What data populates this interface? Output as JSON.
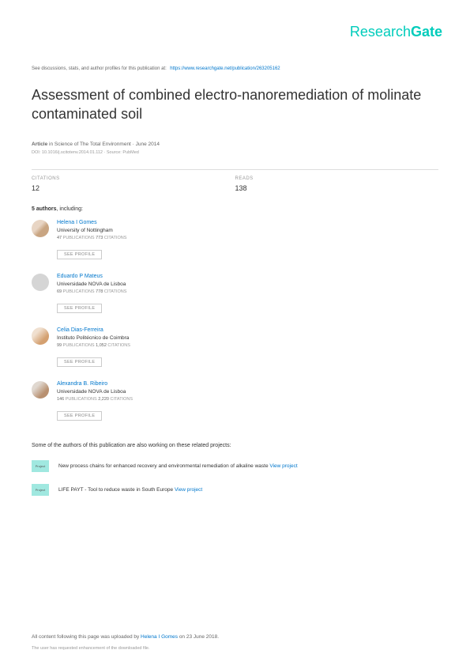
{
  "logo": {
    "part1": "Research",
    "part2": "Gate"
  },
  "topNote": "See discussions, stats, and author profiles for this publication at:",
  "topLink": "https://www.researchgate.net/publication/263205162",
  "title": "Assessment of combined electro-nanoremediation of molinate contaminated soil",
  "articlePrefix": "Article",
  "articleIn": " in ",
  "articleJournal": "Science of The Total Environment · June 2014",
  "doi": "DOI: 10.1016/j.scitotenv.2014.01.112 · Source: PubMed",
  "stats": {
    "citationsLabel": "CITATIONS",
    "citations": "12",
    "readsLabel": "READS",
    "reads": "138"
  },
  "authorsCount": "5 authors",
  "authorsIncluding": ", including:",
  "authors": [
    {
      "name": "Helena I Gomes",
      "affil": "University of Nottingham",
      "pubs": "47",
      "pubsLabel": " PUBLICATIONS   ",
      "cites": "773",
      "citesLabel": " CITATIONS",
      "avatarClass": "avatar-1"
    },
    {
      "name": "Eduardo P Mateus",
      "affil": "Universidade NOVA de Lisboa",
      "pubs": "69",
      "pubsLabel": " PUBLICATIONS   ",
      "cites": "778",
      "citesLabel": " CITATIONS",
      "avatarClass": "avatar-2"
    },
    {
      "name": "Celia Dias-Ferreira",
      "affil": "Instituto Politécnico de Coimbra",
      "pubs": "99",
      "pubsLabel": " PUBLICATIONS   ",
      "cites": "1,052",
      "citesLabel": " CITATIONS",
      "avatarClass": "avatar-3"
    },
    {
      "name": "Alexandra B. Ribeiro",
      "affil": "Universidade NOVA de Lisboa",
      "pubs": "146",
      "pubsLabel": " PUBLICATIONS   ",
      "cites": "2,220",
      "citesLabel": " CITATIONS",
      "avatarClass": "avatar-4"
    }
  ],
  "seeProfile": "SEE PROFILE",
  "projectsHeader": "Some of the authors of this publication are also working on these related projects:",
  "projectIconLabel": "Project",
  "projects": [
    {
      "text": "New process chains for enhanced recovery and environmental remediation of alkaline waste ",
      "view": "View project"
    },
    {
      "text": "LIFE PAYT - Tool to reduce waste in South Europe ",
      "view": "View project"
    }
  ],
  "footer": {
    "prefix": "All content following this page was uploaded by ",
    "uploader": "Helena I Gomes",
    "dateSuffix": " on 23 June 2018.",
    "note": "The user has requested enhancement of the downloaded file."
  }
}
